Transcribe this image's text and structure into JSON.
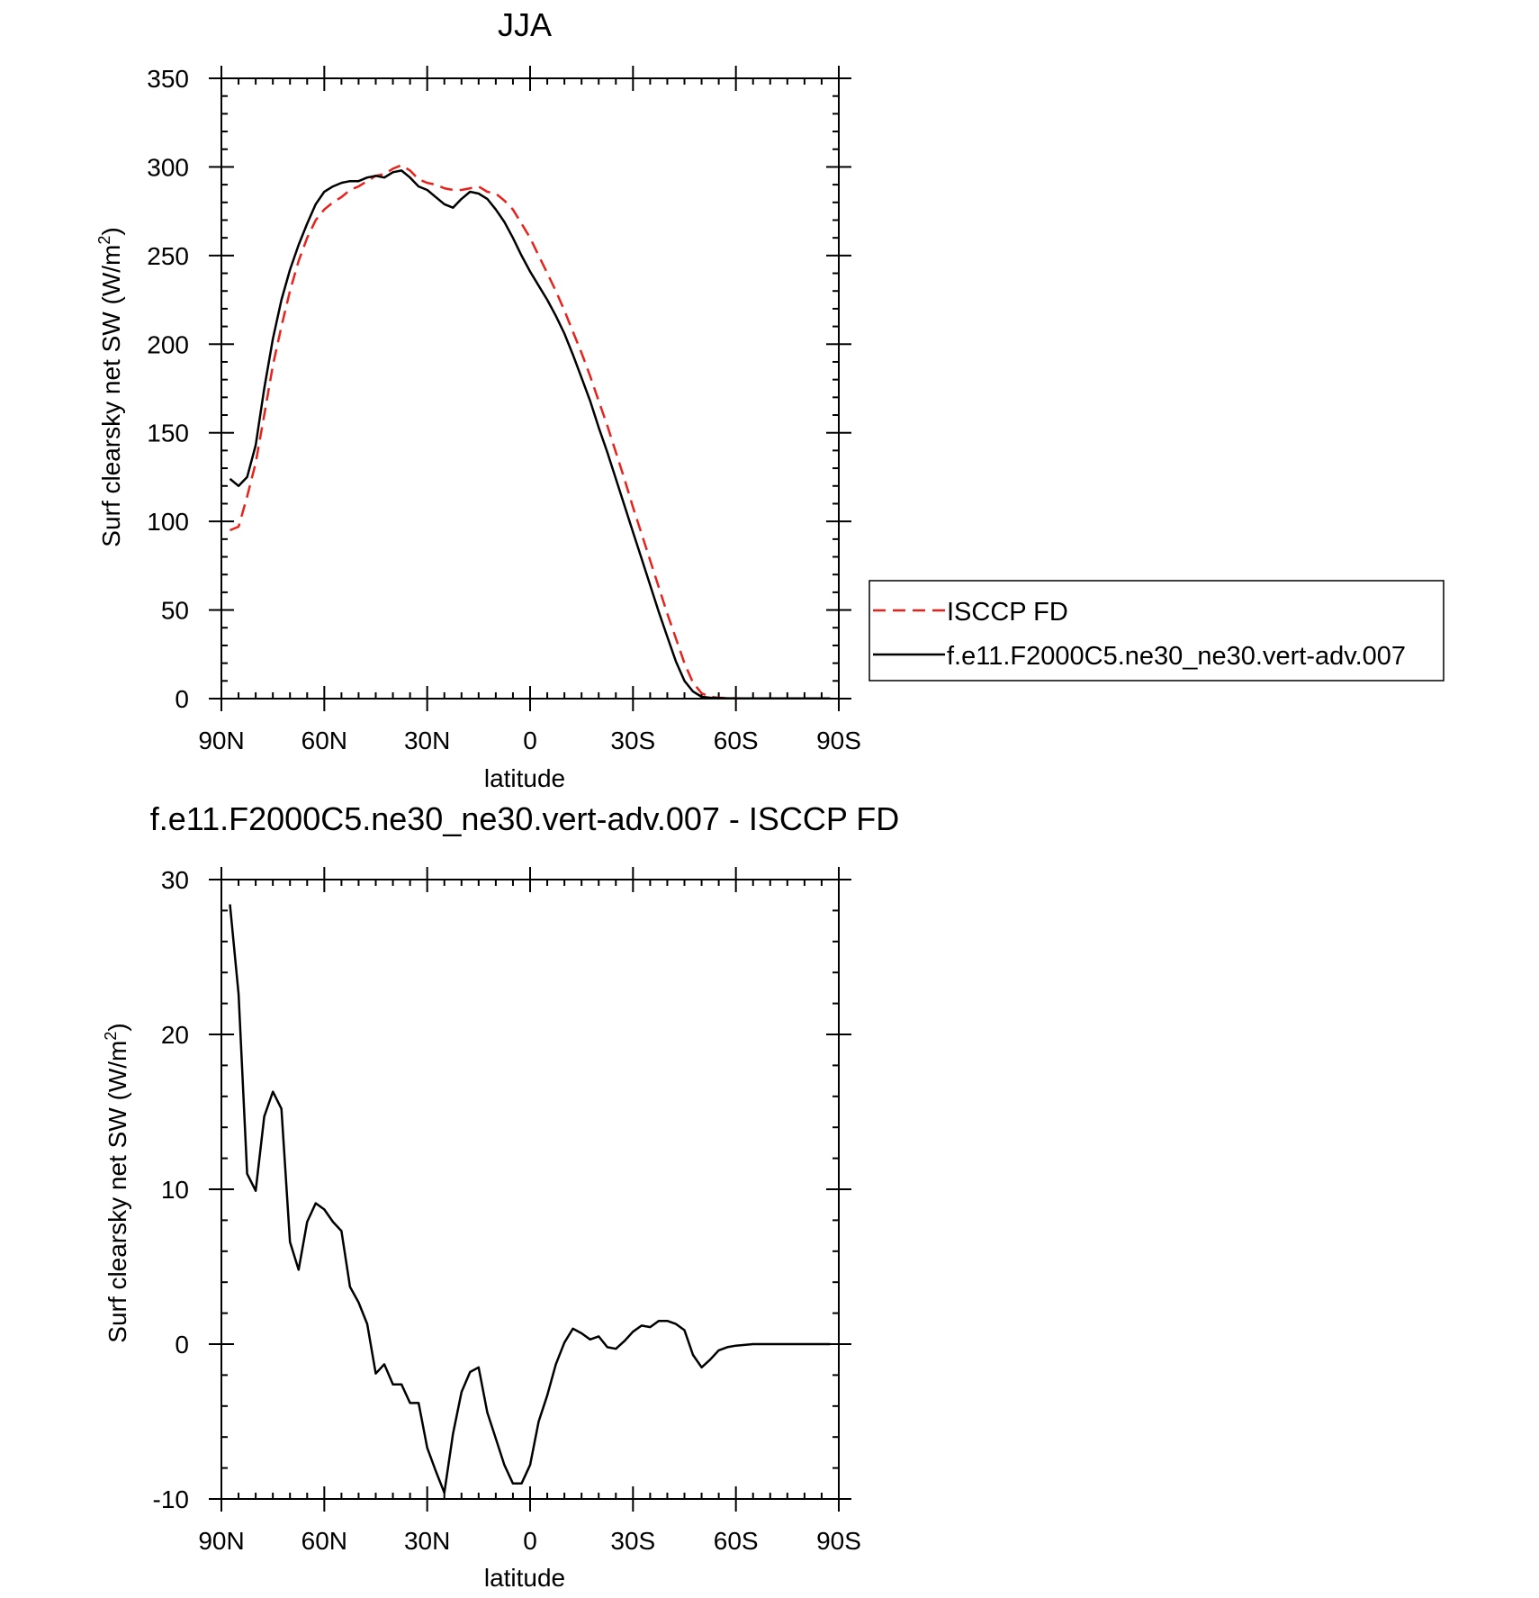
{
  "chart_data": [
    {
      "type": "line",
      "title": "JJA",
      "xlabel": "latitude",
      "ylabel": "Surf clearsky net SW (W/m",
      "ylabel_sup": "2",
      "ylabel_tail": ")",
      "xlim": [
        90,
        -90
      ],
      "ylim": [
        0,
        350
      ],
      "xticks": [
        90,
        60,
        30,
        0,
        -30,
        -60,
        -90
      ],
      "xtick_labels": [
        "90N",
        "60N",
        "30N",
        "0",
        "30S",
        "60S",
        "90S"
      ],
      "yticks": [
        0,
        50,
        100,
        150,
        200,
        250,
        300,
        350
      ],
      "ytick_labels": [
        "0",
        "50",
        "100",
        "150",
        "200",
        "250",
        "300",
        "350"
      ],
      "legend_position": "right",
      "series": [
        {
          "name": "ISCCP FD",
          "color": "#e8211b",
          "dash": "dashed",
          "x": [
            87.5,
            85,
            82.5,
            80,
            77.5,
            75,
            72.5,
            70,
            67.5,
            65,
            62.5,
            60,
            57.5,
            55,
            52.5,
            50,
            47.5,
            45,
            42.5,
            40,
            37.5,
            35,
            32.5,
            30,
            27.5,
            25,
            22.5,
            20,
            17.5,
            15,
            12.5,
            10,
            7.5,
            5,
            2.5,
            0,
            -2.5,
            -5,
            -7.5,
            -10,
            -12.5,
            -15,
            -17.5,
            -20,
            -22.5,
            -25,
            -27.5,
            -30,
            -32.5,
            -35,
            -37.5,
            -40,
            -42.5,
            -45,
            -47.5,
            -50,
            -52.5,
            -55,
            -57.5,
            -60,
            -62.5,
            -65,
            -67.5,
            -70,
            -72.5,
            -75,
            -77.5,
            -80,
            -82.5,
            -85,
            -87.5
          ],
          "values": [
            95,
            97,
            114,
            133,
            160,
            188,
            210,
            230,
            247,
            260,
            270,
            276,
            280,
            283,
            287,
            289,
            292,
            295,
            296,
            299,
            301,
            298,
            293,
            291,
            290,
            288,
            287,
            287,
            288,
            289,
            286,
            285,
            281,
            276,
            268,
            260,
            250,
            240,
            230,
            219,
            207,
            195,
            182,
            168,
            154,
            139,
            124,
            108,
            93,
            78,
            63,
            48,
            34,
            20,
            9,
            3,
            1,
            0.5,
            0.3,
            0.2,
            0.1,
            0.1,
            0.1,
            0.1,
            0.1,
            0.1,
            0.1,
            0.1,
            0.1,
            0.1,
            0.1
          ]
        },
        {
          "name": "f.e11.F2000C5.ne30_ne30.vert-adv.007",
          "color": "#000000",
          "dash": "solid",
          "x": [
            87.5,
            85,
            82.5,
            80,
            77.5,
            75,
            72.5,
            70,
            67.5,
            65,
            62.5,
            60,
            57.5,
            55,
            52.5,
            50,
            47.5,
            45,
            42.5,
            40,
            37.5,
            35,
            32.5,
            30,
            27.5,
            25,
            22.5,
            20,
            17.5,
            15,
            12.5,
            10,
            7.5,
            5,
            2.5,
            0,
            -2.5,
            -5,
            -7.5,
            -10,
            -12.5,
            -15,
            -17.5,
            -20,
            -22.5,
            -25,
            -27.5,
            -30,
            -32.5,
            -35,
            -37.5,
            -40,
            -42.5,
            -45,
            -47.5,
            -50,
            -52.5,
            -55,
            -57.5,
            -60,
            -62.5,
            -65,
            -67.5,
            -70,
            -72.5,
            -75,
            -77.5,
            -80,
            -82.5,
            -85,
            -87.5
          ],
          "values": [
            124,
            120,
            125,
            143,
            175,
            203,
            225,
            242,
            256,
            268,
            279,
            286,
            289,
            291,
            292,
            292,
            294,
            295,
            294,
            297,
            298,
            294,
            289,
            287,
            283,
            279,
            277,
            282,
            286,
            285,
            282,
            276,
            269,
            260,
            250,
            241,
            233,
            225,
            216,
            206,
            194,
            181,
            168,
            153,
            139,
            124,
            109,
            94,
            79,
            64,
            49,
            35,
            21,
            10,
            4,
            1,
            0.5,
            0.3,
            0.2,
            0.1,
            0.1,
            0.1,
            0.1,
            0.1,
            0.1,
            0.1,
            0.1,
            0.1,
            0.1,
            0.1,
            0.1
          ]
        }
      ]
    },
    {
      "type": "line",
      "title": "f.e11.F2000C5.ne30_ne30.vert-adv.007 - ISCCP FD",
      "xlabel": "latitude",
      "ylabel": "Surf clearsky net SW (W/m",
      "ylabel_sup": "2",
      "ylabel_tail": ")",
      "xlim": [
        90,
        -90
      ],
      "ylim": [
        -10,
        30
      ],
      "xticks": [
        90,
        60,
        30,
        0,
        -30,
        -60,
        -90
      ],
      "xtick_labels": [
        "90N",
        "60N",
        "30N",
        "0",
        "30S",
        "60S",
        "90S"
      ],
      "yticks": [
        -10,
        0,
        10,
        20,
        30
      ],
      "ytick_labels": [
        "-10",
        "0",
        "10",
        "20",
        "30"
      ],
      "series": [
        {
          "color": "#000000",
          "dash": "solid",
          "x": [
            87.5,
            85,
            82.5,
            80,
            77.5,
            75,
            72.5,
            70,
            67.5,
            65,
            62.5,
            60,
            57.5,
            55,
            52.5,
            50,
            47.5,
            45,
            42.5,
            40,
            37.5,
            35,
            32.5,
            30,
            27.5,
            25,
            22.5,
            20,
            17.5,
            15,
            12.5,
            10,
            7.5,
            5,
            2.5,
            0,
            -2.5,
            -5,
            -7.5,
            -10,
            -12.5,
            -15,
            -17.5,
            -20,
            -22.5,
            -25,
            -27.5,
            -30,
            -32.5,
            -35,
            -37.5,
            -40,
            -42.5,
            -45,
            -47.5,
            -50,
            -52.5,
            -55,
            -57.5,
            -60,
            -62.5,
            -65,
            -67.5,
            -70,
            -72.5,
            -75,
            -77.5,
            -80,
            -82.5,
            -85,
            -87.5
          ],
          "values": [
            28.4,
            22.6,
            11.0,
            9.9,
            14.7,
            16.3,
            15.2,
            6.6,
            4.8,
            7.9,
            9.1,
            8.7,
            7.9,
            7.3,
            3.7,
            2.7,
            1.3,
            -1.9,
            -1.3,
            -2.6,
            -2.6,
            -3.8,
            -3.8,
            -6.7,
            -8.2,
            -9.6,
            -5.8,
            -3.1,
            -1.8,
            -1.5,
            -4.4,
            -6.1,
            -7.8,
            -9.0,
            -9.0,
            -7.8,
            -5.0,
            -3.3,
            -1.3,
            0.1,
            1.0,
            0.7,
            0.3,
            0.5,
            -0.2,
            -0.3,
            0.2,
            0.8,
            1.2,
            1.1,
            1.5,
            1.5,
            1.3,
            0.9,
            -0.7,
            -1.5,
            -1.0,
            -0.4,
            -0.2,
            -0.1,
            -0.05,
            0,
            0,
            0,
            0,
            0,
            0,
            0,
            0,
            0,
            0
          ]
        }
      ]
    }
  ]
}
